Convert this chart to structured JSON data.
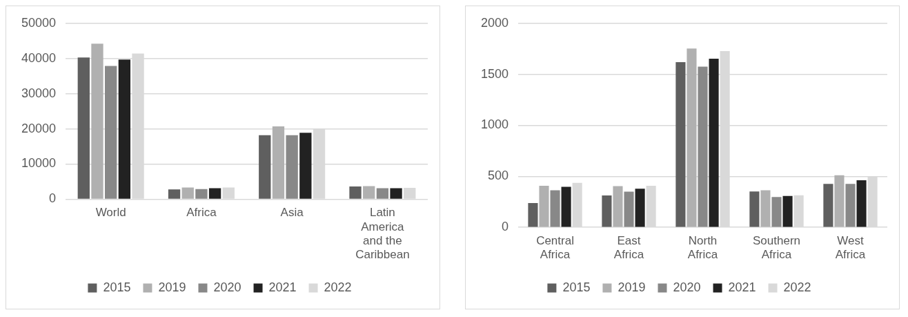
{
  "chart_data": [
    {
      "type": "bar",
      "categories": [
        "World",
        "Africa",
        "Asia",
        "Latin America and the Caribbean"
      ],
      "ylim": [
        0,
        50000
      ],
      "yticks": [
        0,
        10000,
        20000,
        30000,
        40000,
        50000
      ],
      "grid": "y",
      "legend": "bottom",
      "series": [
        {
          "name": "2015",
          "color": "#5f5f5f",
          "values": [
            40300,
            2800,
            18200,
            3600
          ]
        },
        {
          "name": "2019",
          "color": "#b0b0b0",
          "values": [
            44200,
            3300,
            20700,
            3700
          ]
        },
        {
          "name": "2020",
          "color": "#888888",
          "values": [
            37900,
            2900,
            18200,
            3100
          ]
        },
        {
          "name": "2021",
          "color": "#222222",
          "values": [
            39700,
            3100,
            18900,
            3100
          ]
        },
        {
          "name": "2022",
          "color": "#d9d9d9",
          "values": [
            41400,
            3300,
            20000,
            3200
          ]
        }
      ]
    },
    {
      "type": "bar",
      "categories": [
        "Central Africa",
        "East Africa",
        "North Africa",
        "Southern Africa",
        "West Africa"
      ],
      "ylim": [
        0,
        2000
      ],
      "yticks": [
        0,
        500,
        1000,
        1500,
        2000
      ],
      "grid": "y",
      "legend": "bottom",
      "series": [
        {
          "name": "2015",
          "color": "#5f5f5f",
          "values": [
            238,
            312,
            1619,
            352,
            427
          ]
        },
        {
          "name": "2019",
          "color": "#b0b0b0",
          "values": [
            407,
            404,
            1754,
            364,
            510
          ]
        },
        {
          "name": "2020",
          "color": "#888888",
          "values": [
            364,
            350,
            1576,
            298,
            427
          ]
        },
        {
          "name": "2021",
          "color": "#222222",
          "values": [
            398,
            378,
            1653,
            307,
            461
          ]
        },
        {
          "name": "2022",
          "color": "#d9d9d9",
          "values": [
            436,
            407,
            1728,
            315,
            501
          ]
        }
      ]
    }
  ]
}
